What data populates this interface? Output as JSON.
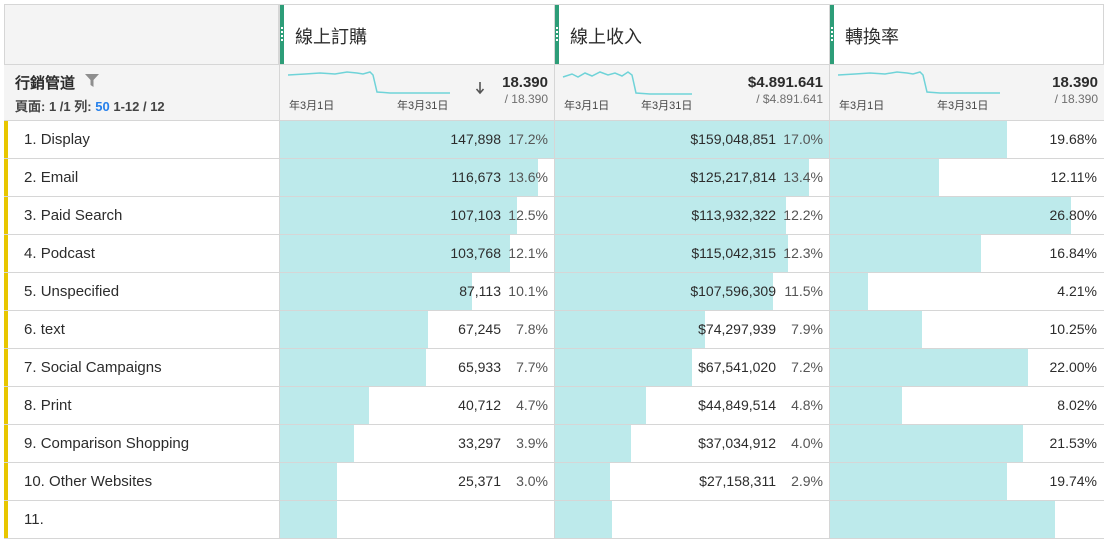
{
  "metrics": [
    {
      "title": "線上訂購",
      "total": "18.390",
      "total_sub": "/ 18.390",
      "sorted": true,
      "spark_from": "年3月1日",
      "spark_to": "年3月31日"
    },
    {
      "title": "線上收入",
      "total": "$4.891.641",
      "total_sub": "/ $4.891.641",
      "sorted": false,
      "spark_from": "年3月1日",
      "spark_to": "年3月31日"
    },
    {
      "title": "轉換率",
      "total": "18.390",
      "total_sub": "/ 18.390",
      "sorted": false,
      "spark_from": "年3月1日",
      "spark_to": "年3月31日"
    }
  ],
  "dimension": {
    "title": "行銷管道",
    "page_label": "頁面:",
    "page_value": "1 /1",
    "rows_label": "列:",
    "rows_value": "50",
    "range": "1-12 / 12"
  },
  "colors": {
    "accent_green": "#2d9d78",
    "bar": "#bdeaeb",
    "row_marker": "#e8c600",
    "sparkline": "#6fd3d8",
    "page_link": "#2680eb"
  },
  "icons": [
    "filter-icon",
    "sort-down-arrow-icon",
    "column-grip-icon"
  ],
  "rows": [
    {
      "num": "1.",
      "name": "Display",
      "orders": "147,898",
      "orders_pct": "17.2%",
      "orders_frac": 0.172,
      "rev": "$159,048,851",
      "rev_pct": "17.0%",
      "rev_frac": 0.17,
      "conv": "19.68%",
      "conv_frac": 0.1968
    },
    {
      "num": "2.",
      "name": "Email",
      "orders": "116,673",
      "orders_pct": "13.6%",
      "orders_frac": 0.136,
      "rev": "$125,217,814",
      "rev_pct": "13.4%",
      "rev_frac": 0.134,
      "conv": "12.11%",
      "conv_frac": 0.1211
    },
    {
      "num": "3.",
      "name": "Paid Search",
      "orders": "107,103",
      "orders_pct": "12.5%",
      "orders_frac": 0.125,
      "rev": "$113,932,322",
      "rev_pct": "12.2%",
      "rev_frac": 0.122,
      "conv": "26.80%",
      "conv_frac": 0.268
    },
    {
      "num": "4.",
      "name": "Podcast",
      "orders": "103,768",
      "orders_pct": "12.1%",
      "orders_frac": 0.121,
      "rev": "$115,042,315",
      "rev_pct": "12.3%",
      "rev_frac": 0.123,
      "conv": "16.84%",
      "conv_frac": 0.1684
    },
    {
      "num": "5.",
      "name": "Unspecified",
      "orders": "87,113",
      "orders_pct": "10.1%",
      "orders_frac": 0.101,
      "rev": "$107,596,309",
      "rev_pct": "11.5%",
      "rev_frac": 0.115,
      "conv": "4.21%",
      "conv_frac": 0.0421
    },
    {
      "num": "6.",
      "name": "text",
      "orders": "67,245",
      "orders_pct": "7.8%",
      "orders_frac": 0.078,
      "rev": "$74,297,939",
      "rev_pct": "7.9%",
      "rev_frac": 0.079,
      "conv": "10.25%",
      "conv_frac": 0.1025
    },
    {
      "num": "7.",
      "name": "Social Campaigns",
      "orders": "65,933",
      "orders_pct": "7.7%",
      "orders_frac": 0.077,
      "rev": "$67,541,020",
      "rev_pct": "7.2%",
      "rev_frac": 0.072,
      "conv": "22.00%",
      "conv_frac": 0.22
    },
    {
      "num": "8.",
      "name": "Print",
      "orders": "40,712",
      "orders_pct": "4.7%",
      "orders_frac": 0.047,
      "rev": "$44,849,514",
      "rev_pct": "4.8%",
      "rev_frac": 0.048,
      "conv": "8.02%",
      "conv_frac": 0.0802
    },
    {
      "num": "9.",
      "name": "Comparison Shopping",
      "orders": "33,297",
      "orders_pct": "3.9%",
      "orders_frac": 0.039,
      "rev": "$37,034,912",
      "rev_pct": "4.0%",
      "rev_frac": 0.04,
      "conv": "21.53%",
      "conv_frac": 0.2153
    },
    {
      "num": "10.",
      "name": "Other Websites",
      "orders": "25,371",
      "orders_pct": "3.0%",
      "orders_frac": 0.03,
      "rev": "$27,158,311",
      "rev_pct": "2.9%",
      "rev_frac": 0.029,
      "conv": "19.74%",
      "conv_frac": 0.1974
    },
    {
      "num": "11.",
      "name": "",
      "orders": "",
      "orders_pct": "",
      "orders_frac": 0.03,
      "rev": "",
      "rev_pct": "",
      "rev_frac": 0.03,
      "conv": "",
      "conv_frac": 0.25
    }
  ]
}
